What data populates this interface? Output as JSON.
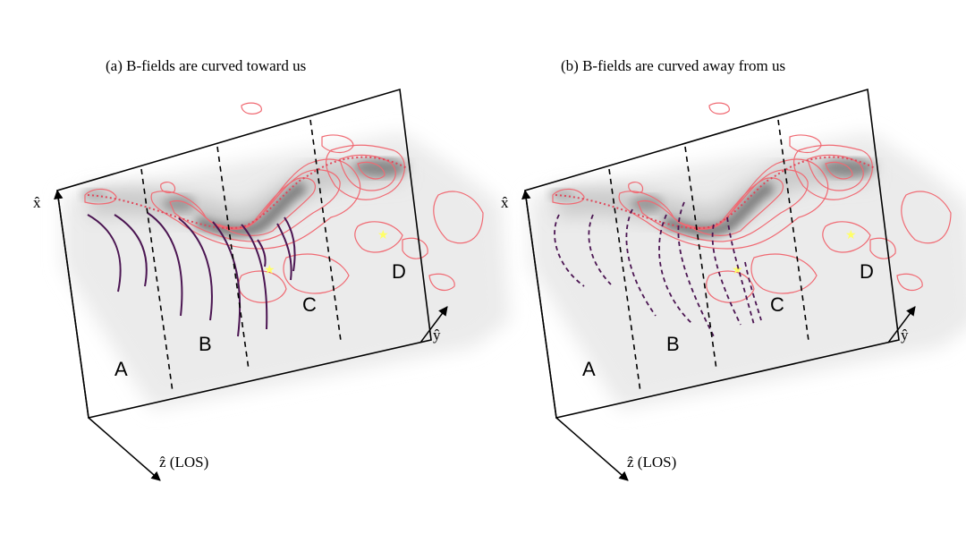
{
  "panel_a": {
    "title": "(a) B-fields are curved toward us",
    "axis_x": "x̂",
    "axis_y": "ŷ",
    "axis_z": "ẑ (LOS)",
    "regions": [
      "A",
      "B",
      "C",
      "D"
    ]
  },
  "panel_b": {
    "title": "(b) B-fields are curved away from us",
    "axis_x": "x̂",
    "axis_y": "ŷ",
    "axis_z": "ẑ (LOS)",
    "regions": [
      "A",
      "B",
      "C",
      "D"
    ]
  },
  "colors": {
    "contour": "#f06a73",
    "spine": "#e0475a",
    "bfield": "#4b1552",
    "star": "#ffff66"
  }
}
